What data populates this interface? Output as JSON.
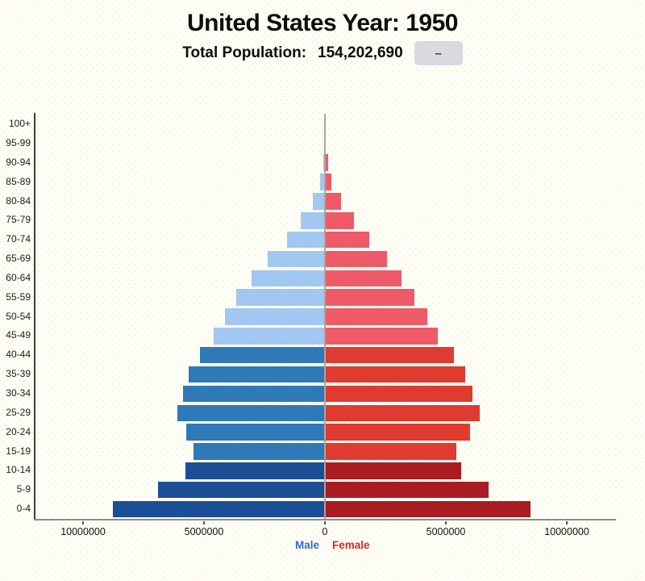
{
  "header": {
    "title": "United States Year: 1950",
    "total_population_label": "Total Population:",
    "total_population_value": "154,202,690",
    "toggle_button_label": "–"
  },
  "legend": {
    "male_label": "Male",
    "male_color": "#2d6fc4",
    "female_label": "Female",
    "female_color": "#d8281f"
  },
  "chart_data": {
    "type": "bar",
    "variant": "population_pyramid",
    "title": "United States Year: 1950",
    "total_population": 154202690,
    "orientation": "horizontal-mirrored",
    "grid": false,
    "legend_position": "bottom-center",
    "x_axis": {
      "tick_labels": [
        "10000000",
        "5000000",
        "0",
        "5000000",
        "10000000"
      ],
      "tick_values_abs": [
        10000000,
        5000000,
        0,
        5000000,
        10000000
      ],
      "xlim_abs": [
        0,
        12000000
      ]
    },
    "y_axis_label_note": "age groups, bottom to top",
    "categories": [
      "0-4",
      "5-9",
      "10-14",
      "15-19",
      "20-24",
      "25-29",
      "30-34",
      "35-39",
      "40-44",
      "45-49",
      "50-54",
      "55-59",
      "60-64",
      "65-69",
      "70-74",
      "75-79",
      "80-84",
      "85-89",
      "90-94",
      "95-99",
      "100+"
    ],
    "series": [
      {
        "name": "Male",
        "side": "left",
        "values": [
          8770000,
          6900000,
          5770000,
          5430000,
          5730000,
          6100000,
          5870000,
          5630000,
          5170000,
          4600000,
          4130000,
          3670000,
          3030000,
          2370000,
          1570000,
          1000000,
          500000,
          200000,
          80000,
          15000,
          3000
        ]
      },
      {
        "name": "Female",
        "side": "right",
        "values": [
          8500000,
          6770000,
          5630000,
          5430000,
          6000000,
          6400000,
          6100000,
          5800000,
          5330000,
          4670000,
          4230000,
          3700000,
          3170000,
          2570000,
          1830000,
          1200000,
          670000,
          270000,
          140000,
          30000,
          6000
        ]
      }
    ],
    "color_groups": {
      "ages_0_14": {
        "male": "#1c4e96",
        "female": "#a81c22"
      },
      "ages_15_44": {
        "male": "#2f79b8",
        "female": "#e03b30"
      },
      "ages_45_up": {
        "male": "#a2c7f0",
        "female": "#ef5a68"
      }
    },
    "axis_colors": {
      "domain": "#3d3d3d",
      "baseline": "#8a8a8a",
      "zero_line": "#a6a6a6"
    }
  }
}
